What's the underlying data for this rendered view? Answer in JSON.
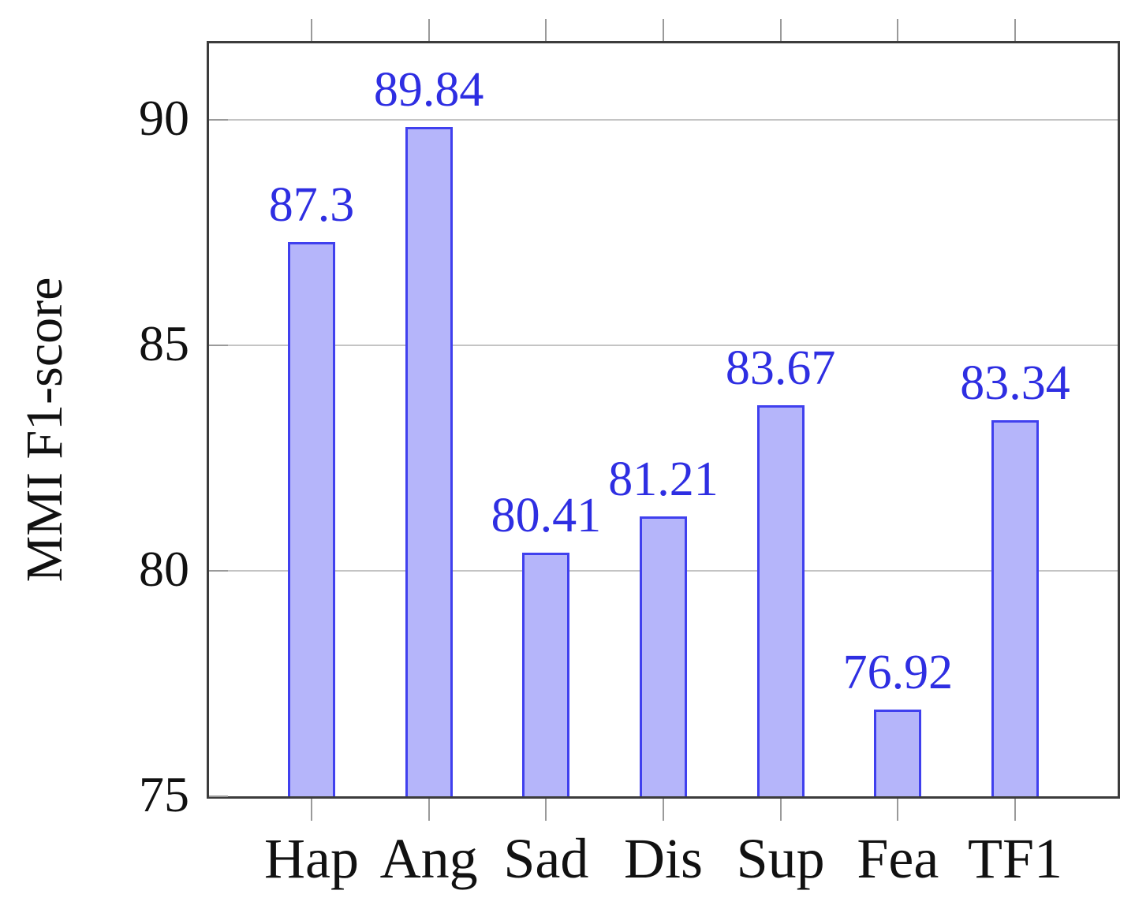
{
  "chart_data": {
    "type": "bar",
    "title": "",
    "xlabel": "",
    "ylabel": "MMI F1-score",
    "categories": [
      "Hap",
      "Ang",
      "Sad",
      "Dis",
      "Sup",
      "Fea",
      "TF1"
    ],
    "values": [
      87.3,
      89.84,
      80.41,
      81.21,
      83.67,
      76.92,
      83.34
    ],
    "value_labels": [
      "87.3",
      "89.84",
      "80.41",
      "81.21",
      "83.67",
      "76.92",
      "83.34"
    ],
    "ylim": [
      75,
      91.7
    ],
    "yticks": [
      75,
      80,
      85,
      90
    ],
    "ytick_labels": [
      "75",
      "80",
      "85",
      "90"
    ],
    "gridline_values": [
      80,
      85,
      90
    ],
    "grid": "horizontal",
    "legend": "none",
    "colors": {
      "bar_fill": "#b5b5fa",
      "bar_border": "#4040ee",
      "value_label": "#2e2ee2",
      "axis": "#3c3c3c",
      "gridline": "#c4c4c4",
      "tick": "#9a9a9a",
      "text": "#111111",
      "background": "#ffffff"
    }
  }
}
